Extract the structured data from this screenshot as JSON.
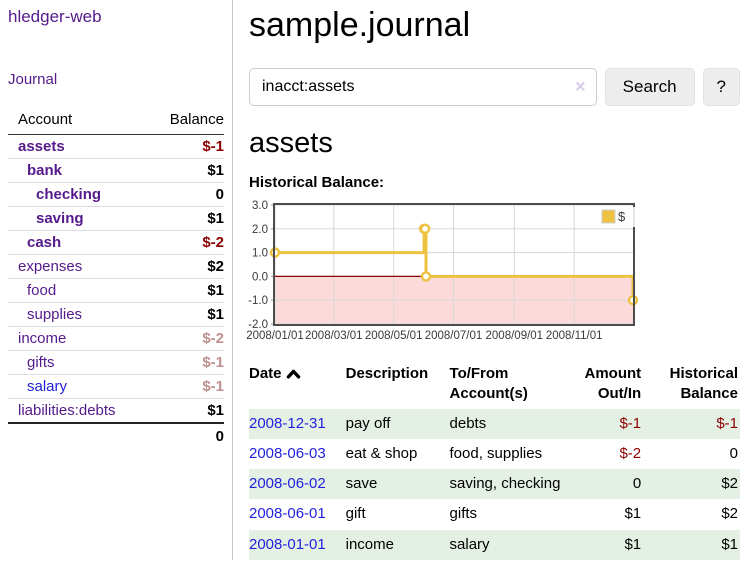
{
  "sidebar": {
    "brand": "hledger-web",
    "journal_link": "Journal",
    "accounts_table": {
      "account_header": "Account",
      "balance_header": "Balance",
      "rows": [
        {
          "name": "assets",
          "indent": 0,
          "bold": true,
          "blue": false,
          "balance": "$-1",
          "negative": "strong"
        },
        {
          "name": "bank",
          "indent": 1,
          "bold": true,
          "blue": false,
          "balance": "$1",
          "negative": null
        },
        {
          "name": "checking",
          "indent": 2,
          "bold": true,
          "blue": false,
          "balance": "0",
          "negative": null
        },
        {
          "name": "saving",
          "indent": 2,
          "bold": true,
          "blue": false,
          "balance": "$1",
          "negative": null
        },
        {
          "name": "cash",
          "indent": 1,
          "bold": true,
          "blue": false,
          "balance": "$-2",
          "negative": "strong"
        },
        {
          "name": "expenses",
          "indent": 0,
          "bold": false,
          "blue": false,
          "balance": "$2",
          "negative": null
        },
        {
          "name": "food",
          "indent": 1,
          "bold": false,
          "blue": false,
          "balance": "$1",
          "negative": null
        },
        {
          "name": "supplies",
          "indent": 1,
          "bold": false,
          "blue": false,
          "balance": "$1",
          "negative": null
        },
        {
          "name": "income",
          "indent": 0,
          "bold": false,
          "blue": false,
          "balance": "$-2",
          "negative": "dim"
        },
        {
          "name": "gifts",
          "indent": 1,
          "bold": false,
          "blue": false,
          "balance": "$-1",
          "negative": "dim"
        },
        {
          "name": "salary",
          "indent": 1,
          "bold": false,
          "blue": true,
          "balance": "$-1",
          "negative": "dim"
        },
        {
          "name": "liabilities:debts",
          "indent": 0,
          "bold": false,
          "blue": false,
          "balance": "$1",
          "negative": null
        }
      ],
      "total": "0"
    }
  },
  "main": {
    "title": "sample.journal",
    "search": {
      "value": "inacct:assets",
      "clear_icon": "×",
      "search_button": "Search",
      "help_button": "?"
    },
    "account_heading": "assets",
    "chart_heading": "Historical Balance:"
  },
  "chart_data": {
    "type": "line",
    "step": true,
    "title": "Historical Balance",
    "series": [
      {
        "name": "$",
        "color": "#edc240",
        "points": [
          [
            "2008-01-01",
            1
          ],
          [
            "2008-06-01",
            2
          ],
          [
            "2008-06-02",
            2
          ],
          [
            "2008-06-03",
            0
          ],
          [
            "2008-12-31",
            -1
          ]
        ]
      }
    ],
    "x_range": [
      "2008-01-01",
      "2008-12-31"
    ],
    "ylim": [
      -2,
      3
    ],
    "y_ticks": [
      "3.0",
      "2.0",
      "1.0",
      "0.0",
      "-1.0",
      "-2.0"
    ],
    "x_ticks": [
      {
        "date": "2008-01-01",
        "label": "2008/01/01"
      },
      {
        "date": "2008-03-01",
        "label": "2008/03/01"
      },
      {
        "date": "2008-05-01",
        "label": "2008/05/01"
      },
      {
        "date": "2008-07-01",
        "label": "2008/07/01"
      },
      {
        "date": "2008-09-01",
        "label": "2008/09/01"
      },
      {
        "date": "2008-11-01",
        "label": "2008/11/01"
      }
    ],
    "grid": true,
    "legend": {
      "label": "$",
      "position": "top-right"
    },
    "negative_region_fill": "#fcdada",
    "zero_line_color": "#8b0000"
  },
  "register": {
    "headers": {
      "date": "Date",
      "description": "Description",
      "account": "To/From Account(s)",
      "amount": "Amount Out/In",
      "balance": "Historical Balance"
    },
    "sort_icon": "caret-up",
    "rows": [
      {
        "date": "2008-12-31",
        "description": "pay off",
        "accounts": "debts",
        "amount": "$-1",
        "amount_negative": true,
        "balance": "$-1",
        "balance_negative": true,
        "highlight": true
      },
      {
        "date": "2008-06-03",
        "description": "eat & shop",
        "accounts": "food, supplies",
        "amount": "$-2",
        "amount_negative": true,
        "balance": "0",
        "balance_negative": false,
        "highlight": false
      },
      {
        "date": "2008-06-02",
        "description": "save",
        "accounts": "saving, checking",
        "amount": "0",
        "amount_negative": false,
        "balance": "$2",
        "balance_negative": false,
        "highlight": true
      },
      {
        "date": "2008-06-01",
        "description": "gift",
        "accounts": "gifts",
        "amount": "$1",
        "amount_negative": false,
        "balance": "$2",
        "balance_negative": false,
        "highlight": false
      },
      {
        "date": "2008-01-01",
        "description": "income",
        "accounts": "salary",
        "amount": "$1",
        "amount_negative": false,
        "balance": "$1",
        "balance_negative": false,
        "highlight": true
      }
    ]
  },
  "colors": {
    "link_purple": "#551a8b",
    "link_blue": "#2222dd",
    "negative_strong": "#8b0000",
    "negative_dim": "#bf8f8f",
    "row_highlight": "#e5f0e5",
    "chart_line": "#edc240",
    "chart_border": "#4d4d4d",
    "chart_gridline": "#d8d8d8"
  }
}
